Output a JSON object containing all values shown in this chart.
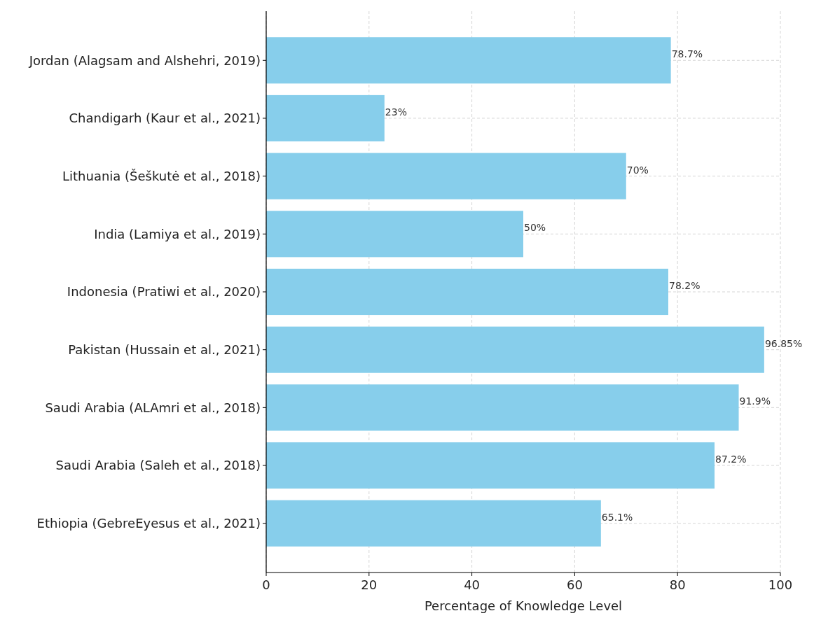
{
  "chart_data": {
    "type": "bar",
    "orientation": "horizontal",
    "xlabel": "Percentage of Knowledge Level",
    "categories": [
      "Jordan (Alagsam and Alshehri, 2019)",
      "Chandigarh (Kaur et al., 2021)",
      "Lithuania (Šeškutė et al., 2018)",
      "India (Lamiya et al., 2019)",
      "Indonesia (Pratiwi et al., 2020)",
      "Pakistan (Hussain et al., 2021)",
      "Saudi Arabia (ALAmri et al., 2018)",
      "Saudi Arabia (Saleh et al., 2018)",
      "Ethiopia (GebreEyesus et al., 2021)"
    ],
    "values": [
      78.7,
      23,
      70,
      50,
      78.2,
      96.85,
      91.9,
      87.2,
      65.1
    ],
    "value_labels": [
      "78.7%",
      "23%",
      "70%",
      "50%",
      "78.2%",
      "96.85%",
      "91.9%",
      "87.2%",
      "65.1%"
    ],
    "color": "#87ceeb",
    "xlim": [
      0,
      100
    ],
    "xticks": [
      0,
      20,
      40,
      60,
      80,
      100
    ],
    "grid": true
  }
}
